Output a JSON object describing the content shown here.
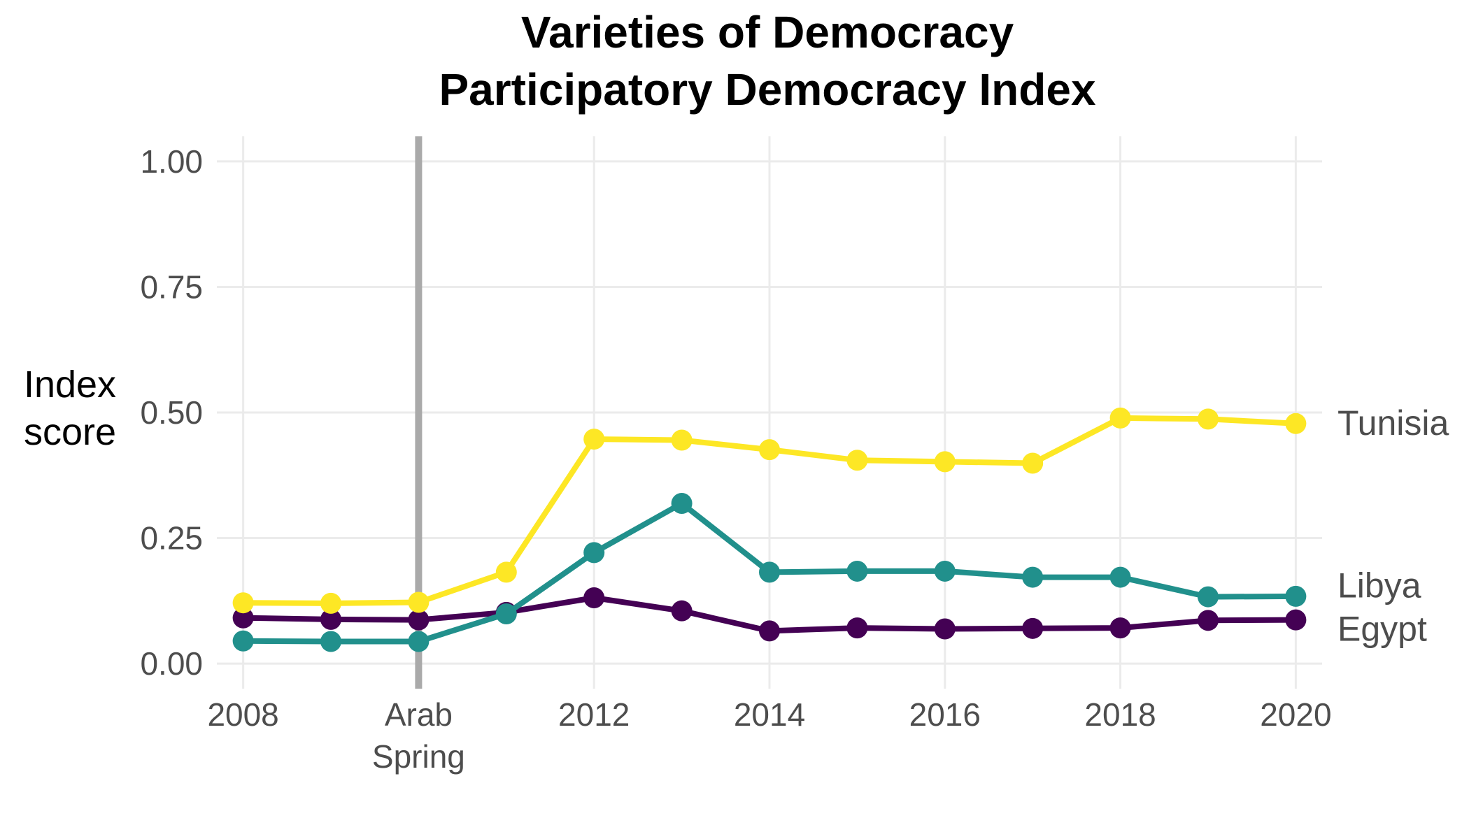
{
  "chart_data": {
    "type": "line",
    "title_line1": "Varieties of Democracy",
    "title_line2": "Participatory Democracy Index",
    "xlabel": "",
    "ylabel_line1": "Index",
    "ylabel_line2": "score",
    "xlim": [
      2007.7,
      2020.3
    ],
    "ylim": [
      -0.05,
      1.05
    ],
    "x_ticks": [
      2008,
      2012,
      2014,
      2016,
      2018,
      2020
    ],
    "x_tick_labels": [
      "2008",
      "2012",
      "2014",
      "2016",
      "2018",
      "2020"
    ],
    "y_ticks": [
      0,
      0.25,
      0.5,
      0.75,
      1.0
    ],
    "y_tick_labels": [
      "0.00",
      "0.25",
      "0.50",
      "0.75",
      "1.00"
    ],
    "event": {
      "x": 2010,
      "label_line1": "Arab",
      "label_line2": "Spring",
      "color": "#aaaaaa"
    },
    "grid": true,
    "legend": "direct labels at right",
    "x": [
      2008,
      2009,
      2010,
      2011,
      2012,
      2013,
      2014,
      2015,
      2016,
      2017,
      2018,
      2019,
      2020
    ],
    "series": [
      {
        "name": "Egypt",
        "color": "#440154",
        "values": [
          0.091,
          0.088,
          0.087,
          0.102,
          0.131,
          0.105,
          0.065,
          0.071,
          0.069,
          0.07,
          0.071,
          0.086,
          0.087
        ]
      },
      {
        "name": "Libya",
        "color": "#21908C",
        "values": [
          0.045,
          0.044,
          0.044,
          0.099,
          0.221,
          0.319,
          0.182,
          0.184,
          0.184,
          0.172,
          0.172,
          0.133,
          0.134
        ]
      },
      {
        "name": "Tunisia",
        "color": "#FDE725",
        "values": [
          0.121,
          0.12,
          0.122,
          0.182,
          0.447,
          0.445,
          0.426,
          0.405,
          0.402,
          0.399,
          0.489,
          0.487,
          0.478
        ]
      }
    ]
  }
}
